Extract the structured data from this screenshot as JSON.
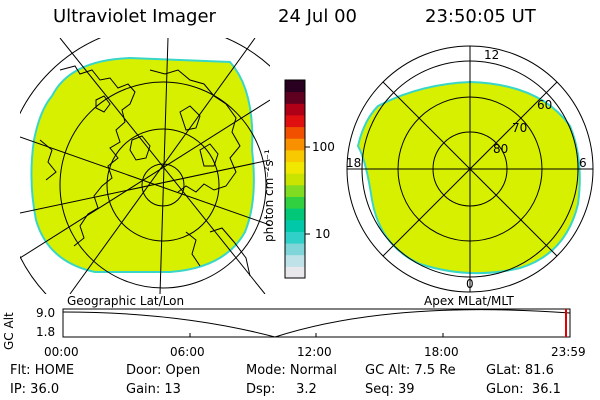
{
  "header": {
    "instrument": "Ultraviolet Imager",
    "date": "24 Jul 00",
    "time": "23:50:05 UT"
  },
  "left_map": {
    "caption": "Geographic Lat/Lon"
  },
  "right_map": {
    "caption": "Apex MLat/MLT",
    "mlt_labels": [
      "12",
      "18",
      "6",
      "0"
    ],
    "lat_labels": [
      "60",
      "70",
      "80"
    ]
  },
  "colorbar": {
    "unit_label": "photon cm⁻²s⁻¹",
    "ticks": [
      "100",
      "10"
    ],
    "colors": [
      "#e8e8ec",
      "#bfe2e8",
      "#7fd5d8",
      "#30d0c8",
      "#00c8a8",
      "#00c878",
      "#30d040",
      "#80dc20",
      "#c8e400",
      "#f0e800",
      "#f8c800",
      "#f89000",
      "#f05000",
      "#e01010",
      "#b00018",
      "#600020",
      "#2a0020"
    ]
  },
  "altitude_plot": {
    "ylabel": "GC Alt",
    "y_ticks": [
      "9.0",
      "1.8"
    ],
    "x_ticks": [
      "00:00",
      "06:00",
      "12:00",
      "18:00",
      "23:59"
    ]
  },
  "status": {
    "row1": [
      {
        "label": "Flt: HOME"
      },
      {
        "label": "Door: Open"
      },
      {
        "label": "Mode: Normal"
      },
      {
        "label": "GC Alt: 7.5 Re"
      },
      {
        "label": "GLat: 81.6"
      }
    ],
    "row2": [
      {
        "label": "IP: 36.0"
      },
      {
        "label": "Gain: 13"
      },
      {
        "label": "Dsp:     3.2"
      },
      {
        "label": "Seq: 39"
      },
      {
        "label": "GLon:  36.1"
      }
    ]
  },
  "palette": {
    "image_fill": "#d7f000",
    "image_edge": "#38d6c8",
    "marker": "#e00000"
  }
}
